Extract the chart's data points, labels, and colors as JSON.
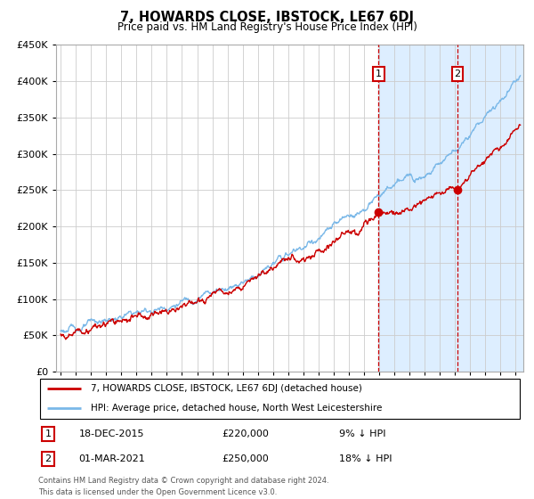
{
  "title": "7, HOWARDS CLOSE, IBSTOCK, LE67 6DJ",
  "subtitle": "Price paid vs. HM Land Registry's House Price Index (HPI)",
  "legend_line1": "7, HOWARDS CLOSE, IBSTOCK, LE67 6DJ (detached house)",
  "legend_line2": "HPI: Average price, detached house, North West Leicestershire",
  "annotation1": {
    "label": "1",
    "date_str": "18-DEC-2015",
    "price_str": "£220,000",
    "pct_str": "9% ↓ HPI",
    "year": 2015.96
  },
  "annotation2": {
    "label": "2",
    "date_str": "01-MAR-2021",
    "price_str": "£250,000",
    "pct_str": "18% ↓ HPI",
    "year": 2021.16
  },
  "footer": "Contains HM Land Registry data © Crown copyright and database right 2024.\nThis data is licensed under the Open Government Licence v3.0.",
  "ylim": [
    0,
    450000
  ],
  "yticks": [
    0,
    50000,
    100000,
    150000,
    200000,
    250000,
    300000,
    350000,
    400000,
    450000
  ],
  "xlim_start": 1994.7,
  "xlim_end": 2025.5,
  "hpi_color": "#7ab8e8",
  "price_color": "#cc0000",
  "shade_color": "#ddeeff",
  "shade_start": 2015.96,
  "shade_end": 2025.5,
  "background_color": "#ffffff",
  "grid_color": "#cccccc",
  "ann1_price": 220000,
  "ann2_price": 250000
}
